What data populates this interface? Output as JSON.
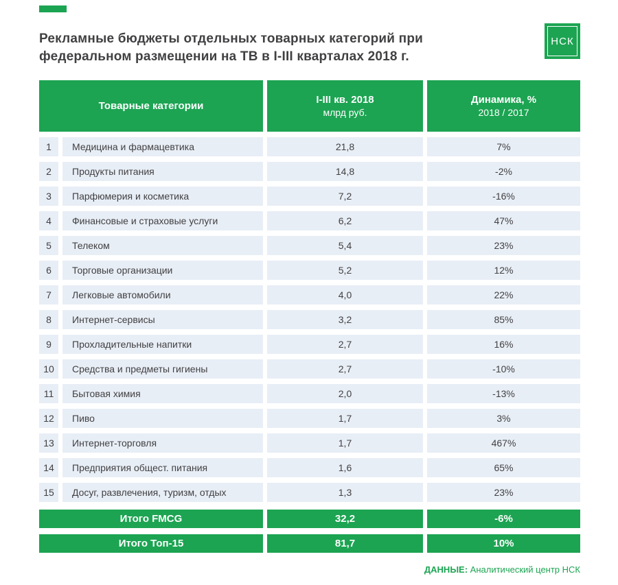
{
  "page": {
    "title_line1": "Рекламные бюджеты отдельных товарных категорий при",
    "title_line2": "федеральном размещении на ТВ в I-III кварталах 2018 г.",
    "logo_text": "НСК",
    "source_label": "ДАННЫЕ:",
    "source_text": "Аналитический центр НСК"
  },
  "colors": {
    "green": "#1CA452",
    "row_background": "#E8EEF6",
    "text": "#414042"
  },
  "table": {
    "header": {
      "col1": "Товарные категории",
      "col2_line1": "I-III кв. 2018",
      "col2_line2": "млрд руб.",
      "col3_line1": "Динамика, %",
      "col3_line2": "2018 / 2017"
    },
    "rows": [
      {
        "num": "1",
        "category": "Медицина и фармацевтика",
        "value": "21,8",
        "dynamics": "7%"
      },
      {
        "num": "2",
        "category": "Продукты питания",
        "value": "14,8",
        "dynamics": "-2%"
      },
      {
        "num": "3",
        "category": "Парфюмерия и косметика",
        "value": "7,2",
        "dynamics": "-16%"
      },
      {
        "num": "4",
        "category": "Финансовые и страховые услуги",
        "value": "6,2",
        "dynamics": "47%"
      },
      {
        "num": "5",
        "category": "Телеком",
        "value": "5,4",
        "dynamics": "23%"
      },
      {
        "num": "6",
        "category": "Торговые организации",
        "value": "5,2",
        "dynamics": "12%"
      },
      {
        "num": "7",
        "category": "Легковые автомобили",
        "value": "4,0",
        "dynamics": "22%"
      },
      {
        "num": "8",
        "category": "Интернет-сервисы",
        "value": "3,2",
        "dynamics": "85%"
      },
      {
        "num": "9",
        "category": "Прохладительные напитки",
        "value": "2,7",
        "dynamics": "16%"
      },
      {
        "num": "10",
        "category": "Средства и предметы гигиены",
        "value": "2,7",
        "dynamics": "-10%"
      },
      {
        "num": "11",
        "category": "Бытовая химия",
        "value": "2,0",
        "dynamics": "-13%"
      },
      {
        "num": "12",
        "category": "Пиво",
        "value": "1,7",
        "dynamics": "3%"
      },
      {
        "num": "13",
        "category": "Интернет-торговля",
        "value": "1,7",
        "dynamics": "467%"
      },
      {
        "num": "14",
        "category": "Предприятия общест. питания",
        "value": "1,6",
        "dynamics": "65%"
      },
      {
        "num": "15",
        "category": "Досуг, развлечения, туризм, отдых",
        "value": "1,3",
        "dynamics": "23%"
      }
    ],
    "totals": [
      {
        "label": "Итого FMCG",
        "value": "32,2",
        "dynamics": "-6%"
      },
      {
        "label": "Итого Топ-15",
        "value": "81,7",
        "dynamics": "10%"
      }
    ]
  },
  "chart_data": {
    "type": "table",
    "title": "Рекламные бюджеты отдельных товарных категорий при федеральном размещении на ТВ в I-III кварталах 2018 г.",
    "columns": [
      "№",
      "Товарные категории",
      "I-III кв. 2018, млрд руб.",
      "Динамика, % 2018 / 2017"
    ],
    "rows": [
      [
        1,
        "Медицина и фармацевтика",
        21.8,
        "7%"
      ],
      [
        2,
        "Продукты питания",
        14.8,
        "-2%"
      ],
      [
        3,
        "Парфюмерия и косметика",
        7.2,
        "-16%"
      ],
      [
        4,
        "Финансовые и страховые услуги",
        6.2,
        "47%"
      ],
      [
        5,
        "Телеком",
        5.4,
        "23%"
      ],
      [
        6,
        "Торговые организации",
        5.2,
        "12%"
      ],
      [
        7,
        "Легковые автомобили",
        4.0,
        "22%"
      ],
      [
        8,
        "Интернет-сервисы",
        3.2,
        "85%"
      ],
      [
        9,
        "Прохладительные напитки",
        2.7,
        "16%"
      ],
      [
        10,
        "Средства и предметы гигиены",
        2.7,
        "-10%"
      ],
      [
        11,
        "Бытовая химия",
        2.0,
        "-13%"
      ],
      [
        12,
        "Пиво",
        1.7,
        "3%"
      ],
      [
        13,
        "Интернет-торговля",
        1.7,
        "467%"
      ],
      [
        14,
        "Предприятия общест. питания",
        1.6,
        "65%"
      ],
      [
        15,
        "Досуг, развлечения, туризм, отдых",
        1.3,
        "23%"
      ]
    ],
    "totals": [
      [
        "Итого FMCG",
        32.2,
        "-6%"
      ],
      [
        "Итого Топ-15",
        81.7,
        "10%"
      ]
    ],
    "source": "ДАННЫЕ: Аналитический центр НСК"
  }
}
